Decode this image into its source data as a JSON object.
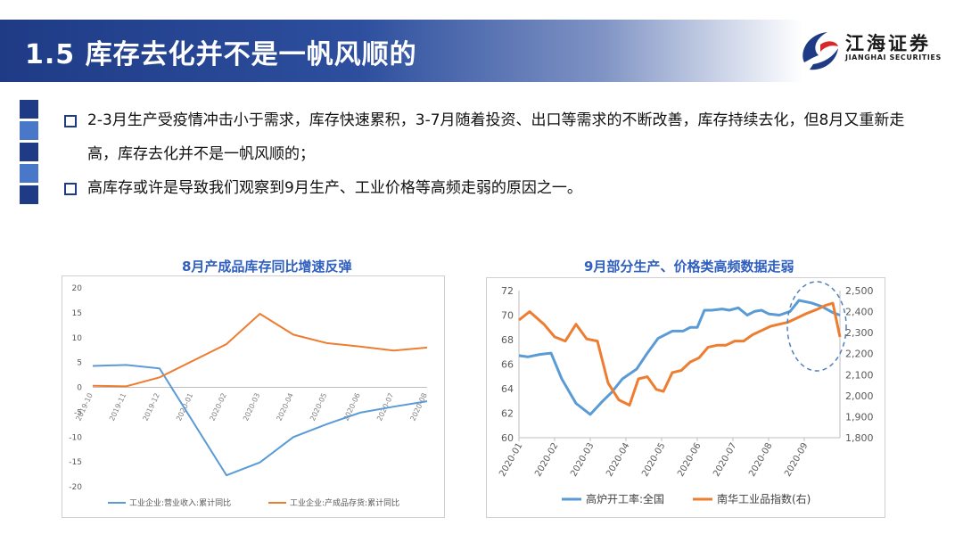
{
  "header": {
    "title": "1.5 库存去化并不是一帆风顺的"
  },
  "logo": {
    "name_cn": "江海证券",
    "name_en": "JIANGHAI SECURITIES",
    "icon": "jianghai-logo-icon"
  },
  "bullets": [
    "2-3月生产受疫情冲击小于需求，库存快速累积，3-7月随着投资、出口等需求的不断改善，库存持续去化，但8月又重新走高，库存去化并不是一帆风顺的；",
    "高库存或许是导致我们观察到9月生产、工业价格等高频走弱的原因之一。"
  ],
  "colors": {
    "blue": "#5b9bd5",
    "orange": "#ed7d31",
    "title_blue": "#2f5fbf",
    "header": "#1f3b86"
  },
  "chart_data": [
    {
      "type": "line",
      "title": "8月产成品库存同比增速反弹",
      "categories": [
        "2019-10",
        "2019-11",
        "2019-12",
        "2020-01",
        "2020-02",
        "2020-03",
        "2020-04",
        "2020-05",
        "2020-06",
        "2020-07",
        "2020-08"
      ],
      "ylim": [
        -20,
        20
      ],
      "yticks": [
        20,
        15,
        10,
        5,
        0,
        -5,
        -10,
        -15,
        -20
      ],
      "legend_position": "bottom",
      "series": [
        {
          "name": "工业企业:营业收入:累计同比",
          "color": "#5b9bd5",
          "values": [
            4.3,
            4.5,
            3.8,
            null,
            -17.7,
            -15.1,
            -10.0,
            -7.4,
            -5.1,
            -3.9,
            -2.8
          ]
        },
        {
          "name": "工业企业:产成品存货:累计同比",
          "color": "#ed7d31",
          "values": [
            0.3,
            0.2,
            2.0,
            null,
            8.7,
            14.8,
            10.6,
            8.9,
            8.2,
            7.4,
            8.0
          ]
        }
      ]
    },
    {
      "type": "line",
      "title": "9月部分生产、价格类高频数据走弱",
      "xticks": [
        "2020-01",
        "2020-02",
        "2020-03",
        "2020-04",
        "2020-05",
        "2020-06",
        "2020-07",
        "2020-08",
        "2020-09"
      ],
      "x_range": [
        0,
        9
      ],
      "ylim_left": [
        60,
        72
      ],
      "yticks_left": [
        "72",
        "70",
        "68",
        "66",
        "64",
        "62",
        "60"
      ],
      "ylim_right": [
        1800,
        2500
      ],
      "yticks_right": [
        "2,500",
        "2,400",
        "2,300",
        "2,200",
        "2,100",
        "2,000",
        "1,900",
        "1,800"
      ],
      "legend_position": "bottom",
      "annotation": "dashed-ellipse-sept",
      "series": [
        {
          "name": "高炉开工率:全国",
          "axis": "left",
          "color": "#5b9bd5",
          "x": [
            0.0,
            0.25,
            0.6,
            0.9,
            1.2,
            1.6,
            2.0,
            2.35,
            2.6,
            2.9,
            3.3,
            3.6,
            3.9,
            4.3,
            4.6,
            4.8,
            5.0,
            5.2,
            5.4,
            5.7,
            5.9,
            6.15,
            6.4,
            6.6,
            6.8,
            7.0,
            7.3,
            7.6,
            7.85,
            8.2,
            8.5,
            8.8,
            9.0
          ],
          "values": [
            66.7,
            66.6,
            66.8,
            66.9,
            64.8,
            62.8,
            61.9,
            63.0,
            63.7,
            64.8,
            65.6,
            66.9,
            68.1,
            68.7,
            68.7,
            69.0,
            69.0,
            70.4,
            70.4,
            70.5,
            70.4,
            70.6,
            70.0,
            70.3,
            70.4,
            70.1,
            70.0,
            70.3,
            71.2,
            71.0,
            70.7,
            70.2,
            70.0
          ]
        },
        {
          "name": "南华工业品指数(右)",
          "axis": "right",
          "color": "#ed7d31",
          "x": [
            0.0,
            0.3,
            0.7,
            1.0,
            1.3,
            1.6,
            1.9,
            2.2,
            2.5,
            2.8,
            3.1,
            3.35,
            3.6,
            3.85,
            4.05,
            4.3,
            4.55,
            4.8,
            5.05,
            5.3,
            5.55,
            5.8,
            6.05,
            6.3,
            6.55,
            6.8,
            7.05,
            7.3,
            7.55,
            7.8,
            8.05,
            8.35,
            8.6,
            8.8,
            9.0
          ],
          "values": [
            2360,
            2400,
            2340,
            2280,
            2260,
            2340,
            2270,
            2260,
            2060,
            1980,
            1955,
            2080,
            2090,
            2030,
            2020,
            2110,
            2120,
            2160,
            2180,
            2230,
            2240,
            2240,
            2260,
            2260,
            2290,
            2310,
            2330,
            2340,
            2350,
            2370,
            2390,
            2410,
            2430,
            2440,
            2280
          ]
        }
      ]
    }
  ]
}
